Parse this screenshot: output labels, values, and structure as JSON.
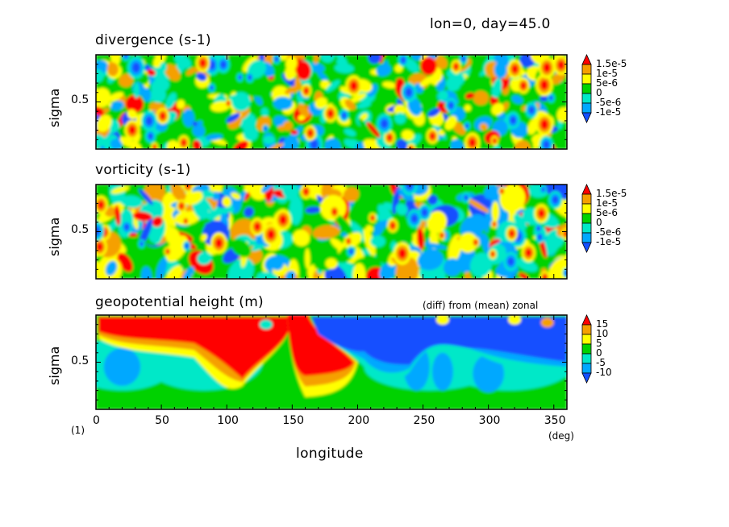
{
  "header": "lon=0, day=45.0",
  "figure_label": "(1)",
  "palette": {
    "red": "#ff0000",
    "orange": "#f5a000",
    "yellow": "#ffff00",
    "green": "#00d200",
    "cyan": "#00e8c8",
    "lightblue": "#00a8ff",
    "blue": "#1450ff"
  },
  "chart_data": [
    {
      "type": "heatmap",
      "panel": "divergence",
      "title": "divergence (s-1)",
      "ylabel": "sigma",
      "yticks": [
        "0.5"
      ],
      "xlim": [
        0,
        360
      ],
      "ylim": [
        0,
        1
      ],
      "colorbar": {
        "labels": [
          "1.5e-5",
          "1e-5",
          "5e-6",
          "0",
          "-5e-6",
          "-1e-5"
        ],
        "levels": [
          -1e-05,
          -5e-06,
          0,
          5e-06,
          1e-05,
          1.5e-05
        ]
      }
    },
    {
      "type": "heatmap",
      "panel": "vorticity",
      "title": "vorticity (s-1)",
      "ylabel": "sigma",
      "yticks": [
        "0.5"
      ],
      "xlim": [
        0,
        360
      ],
      "ylim": [
        0,
        1
      ],
      "colorbar": {
        "labels": [
          "1.5e-5",
          "1e-5",
          "5e-6",
          "0",
          "-5e-6",
          "-1e-5"
        ],
        "levels": [
          -1e-05,
          -5e-06,
          0,
          5e-06,
          1e-05,
          1.5e-05
        ]
      }
    },
    {
      "type": "heatmap",
      "panel": "geopotential",
      "title": "geopotential height (m)",
      "annotation": "(diff) from (mean) zonal",
      "ylabel": "sigma",
      "yticks": [
        "0.5"
      ],
      "xlabel": "longitude",
      "xunit": "(deg)",
      "xticks": [
        0,
        50,
        100,
        150,
        200,
        250,
        300,
        350
      ],
      "xlim": [
        0,
        360
      ],
      "ylim": [
        0,
        1
      ],
      "colorbar": {
        "labels": [
          "15",
          "10",
          "5",
          "0",
          "-5",
          "-10"
        ],
        "levels": [
          -10,
          -5,
          0,
          5,
          10,
          15
        ]
      }
    }
  ]
}
